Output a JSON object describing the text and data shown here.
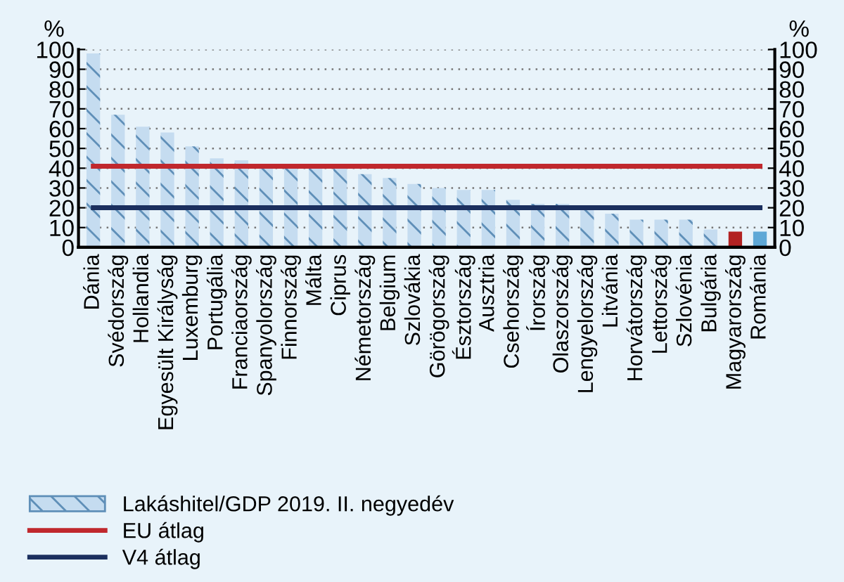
{
  "chart_data": {
    "type": "bar",
    "categories": [
      "Dánia",
      "Svédország",
      "Hollandia",
      "Egyesült Királyság",
      "Luxemburg",
      "Portugália",
      "Franciaország",
      "Spanyolország",
      "Finnország",
      "Málta",
      "Ciprus",
      "Németország",
      "Belgium",
      "Szlovákia",
      "Görögország",
      "Észtország",
      "Ausztria",
      "Csehország",
      "Írország",
      "Olaszország",
      "Lengyelország",
      "Litvánia",
      "Horvátország",
      "Lettország",
      "Szlovénia",
      "Bulgária",
      "Magyarország",
      "Románia"
    ],
    "series": [
      {
        "name": "Lakáshitel/GDP 2019. II. negyedév",
        "type": "bar",
        "color": "#c5dcf0",
        "colors": [
          "#c5dcf0",
          "#c5dcf0",
          "#c5dcf0",
          "#c5dcf0",
          "#c5dcf0",
          "#c5dcf0",
          "#c5dcf0",
          "#c5dcf0",
          "#c5dcf0",
          "#c5dcf0",
          "#c5dcf0",
          "#c5dcf0",
          "#c5dcf0",
          "#c5dcf0",
          "#c5dcf0",
          "#c5dcf0",
          "#c5dcf0",
          "#c5dcf0",
          "#c5dcf0",
          "#c5dcf0",
          "#c5dcf0",
          "#c5dcf0",
          "#c5dcf0",
          "#c5dcf0",
          "#c5dcf0",
          "#c5dcf0",
          "#b22222",
          "#5fa8d6"
        ],
        "values": [
          98,
          67,
          61,
          58,
          51,
          45,
          44,
          42,
          41,
          41,
          40,
          37,
          35,
          32,
          30,
          29,
          29,
          24,
          22,
          22,
          20,
          17,
          14,
          14,
          14,
          9,
          8,
          8
        ]
      },
      {
        "name": "EU átlag",
        "type": "line",
        "color": "#c0282d",
        "values": [
          41,
          41,
          41,
          41,
          41,
          41,
          41,
          41,
          41,
          41,
          41,
          41,
          41,
          41,
          41,
          41,
          41,
          41,
          41,
          41,
          41,
          41,
          41,
          41,
          41,
          41,
          41,
          41
        ]
      },
      {
        "name": "V4 átlag",
        "type": "line",
        "color": "#1b2f5e",
        "values": [
          20,
          20,
          20,
          20,
          20,
          20,
          20,
          20,
          20,
          20,
          20,
          20,
          20,
          20,
          20,
          20,
          20,
          20,
          20,
          20,
          20,
          20,
          20,
          20,
          20,
          20,
          20,
          20
        ]
      }
    ],
    "ylabel": "%",
    "y2label": "%",
    "ylim": [
      0,
      100
    ],
    "yticks": [
      0,
      10,
      20,
      30,
      40,
      50,
      60,
      70,
      80,
      90,
      100
    ],
    "y2lim": [
      0,
      100
    ],
    "y2ticks": [
      0,
      10,
      20,
      30,
      40,
      50,
      60,
      70,
      80,
      90,
      100
    ],
    "grid": "y",
    "legend": "bottom left"
  }
}
